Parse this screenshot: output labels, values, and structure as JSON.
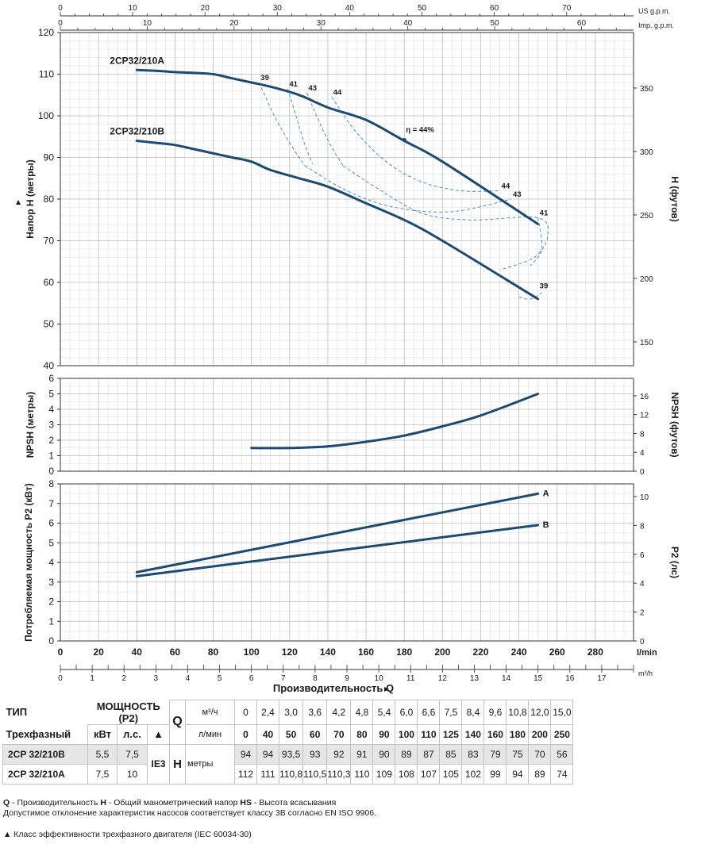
{
  "chart_data": [
    {
      "type": "line",
      "title": "",
      "ylabel": "Напор H (метры)",
      "ylabel_right": "H (футов)",
      "ylim": [
        40,
        120
      ],
      "y_ticks": [
        40,
        50,
        60,
        70,
        80,
        90,
        100,
        110,
        120
      ],
      "y_right_ticks": [
        150,
        200,
        250,
        300,
        350
      ],
      "xlim": [
        0,
        300
      ],
      "top_axis_usgpm_ticks": [
        0,
        10,
        20,
        30,
        40,
        50,
        60,
        70
      ],
      "top_axis_usgpm_label": "US g.p.m.",
      "top_axis_imp_ticks": [
        0,
        10,
        20,
        30,
        40,
        50,
        60
      ],
      "top_axis_imp_label": "Imp. g.p.m.",
      "grid": true,
      "series": [
        {
          "name": "2CP32/210A",
          "x": [
            40,
            50,
            60,
            70,
            80,
            90,
            100,
            110,
            125,
            140,
            160,
            180,
            200,
            250
          ],
          "y": [
            111,
            110.8,
            110.5,
            110.3,
            110,
            109,
            108,
            107,
            105,
            102,
            99,
            94,
            89,
            74
          ]
        },
        {
          "name": "2CP32/210B",
          "x": [
            40,
            50,
            60,
            70,
            80,
            90,
            100,
            110,
            125,
            140,
            160,
            180,
            200,
            250
          ],
          "y": [
            94,
            93.5,
            93,
            92,
            91,
            90,
            89,
            87,
            85,
            83,
            79,
            75,
            70,
            56
          ]
        }
      ],
      "annotations": [
        {
          "text": "39",
          "x": 104,
          "y": 108
        },
        {
          "text": "41",
          "x": 119,
          "y": 106.5
        },
        {
          "text": "43",
          "x": 129,
          "y": 105.5
        },
        {
          "text": "44",
          "x": 142,
          "y": 104.5
        },
        {
          "text": "η = 44%",
          "x": 180,
          "y": 95.5
        },
        {
          "text": "44",
          "x": 230,
          "y": 82
        },
        {
          "text": "43",
          "x": 236,
          "y": 80
        },
        {
          "text": "41",
          "x": 250,
          "y": 75.5
        },
        {
          "text": "39",
          "x": 250,
          "y": 58
        }
      ]
    },
    {
      "type": "line",
      "ylabel": "NPSH (метры)",
      "ylabel_right": "NPSH (футов)",
      "ylim": [
        0,
        6
      ],
      "y_ticks": [
        0,
        1,
        2,
        3,
        4,
        5,
        6
      ],
      "y_right_ticks": [
        0,
        4,
        8,
        12,
        16
      ],
      "series": [
        {
          "name": "",
          "x": [
            100,
            120,
            140,
            160,
            180,
            200,
            220,
            250
          ],
          "y": [
            1.5,
            1.5,
            1.6,
            1.9,
            2.3,
            2.9,
            3.6,
            5.0
          ]
        }
      ]
    },
    {
      "type": "line",
      "ylabel": "Потребляемая мощность P2 (кВт)",
      "ylabel_right": "P2 (лс)",
      "ylim": [
        0,
        8
      ],
      "y_ticks": [
        0,
        1,
        2,
        3,
        4,
        5,
        6,
        7,
        8
      ],
      "y_right_ticks": [
        0,
        2,
        4,
        6,
        8,
        10
      ],
      "xlabel": "Производительность Q",
      "x_ticks_lmin": [
        0,
        20,
        40,
        60,
        80,
        100,
        120,
        140,
        160,
        180,
        200,
        220,
        240,
        260,
        280
      ],
      "x_unit_lmin": "l/min",
      "x_ticks_m3h": [
        0,
        1,
        2,
        3,
        4,
        5,
        6,
        7,
        8,
        9,
        10,
        11,
        12,
        13,
        14,
        15,
        16,
        17
      ],
      "x_unit_m3h": "m³/h",
      "series": [
        {
          "name": "A",
          "x": [
            40,
            250
          ],
          "y": [
            3.5,
            7.5
          ]
        },
        {
          "name": "B",
          "x": [
            40,
            250
          ],
          "y": [
            3.3,
            5.9
          ]
        }
      ]
    }
  ],
  "table": {
    "type_label": "ТИП",
    "three_phase_label": "Трехфазный",
    "power_label": "МОЩНОСТЬ (P2)",
    "kw_label": "кВт",
    "hp_label": "л.с.",
    "triangle": "▲",
    "q_label": "Q",
    "m3h_label": "м³/ч",
    "lmin_label": "л/мин",
    "q_m3h": [
      "0",
      "2,4",
      "3,0",
      "3,6",
      "4,2",
      "4,8",
      "5,4",
      "6,0",
      "6,6",
      "7,5",
      "8,4",
      "9,6",
      "10,8",
      "12,0",
      "15,0"
    ],
    "q_lmin": [
      "0",
      "40",
      "50",
      "60",
      "70",
      "80",
      "90",
      "100",
      "110",
      "125",
      "140",
      "160",
      "180",
      "200",
      "250"
    ],
    "ie_label": "IE3",
    "h_label": "H",
    "h_unit": "метры",
    "rows": [
      {
        "model": "2CP 32/210B",
        "kw": "5,5",
        "hp": "7,5",
        "h": [
          "94",
          "94",
          "93,5",
          "93",
          "92",
          "91",
          "90",
          "89",
          "87",
          "85",
          "83",
          "79",
          "75",
          "70",
          "56"
        ]
      },
      {
        "model": "2CP 32/210A",
        "kw": "7,5",
        "hp": "10",
        "h": [
          "112",
          "111",
          "110,8",
          "110,5",
          "110,3",
          "110",
          "109",
          "108",
          "107",
          "105",
          "102",
          "99",
          "94",
          "89",
          "74"
        ]
      }
    ]
  },
  "notes": {
    "line1_q": "Q",
    "line1_q_text": " - Производительность ",
    "line1_h": "H",
    "line1_h_text": " - Общий манометрический напор ",
    "line1_hs": "HS",
    "line1_hs_text": " - Высота всасывания",
    "line2": "Допустимое отклонение характеристик насосов соответствует классу 3B согласно EN ISO 9906.",
    "line3": "▲  Класс эффективности трехфазного двигателя (IEC 60034-30)"
  },
  "colors": {
    "curve": "#1d4a73",
    "efficiency": "#3a86b8",
    "grid_major": "#bcbcbc",
    "grid_minor": "#dcdcdc"
  }
}
